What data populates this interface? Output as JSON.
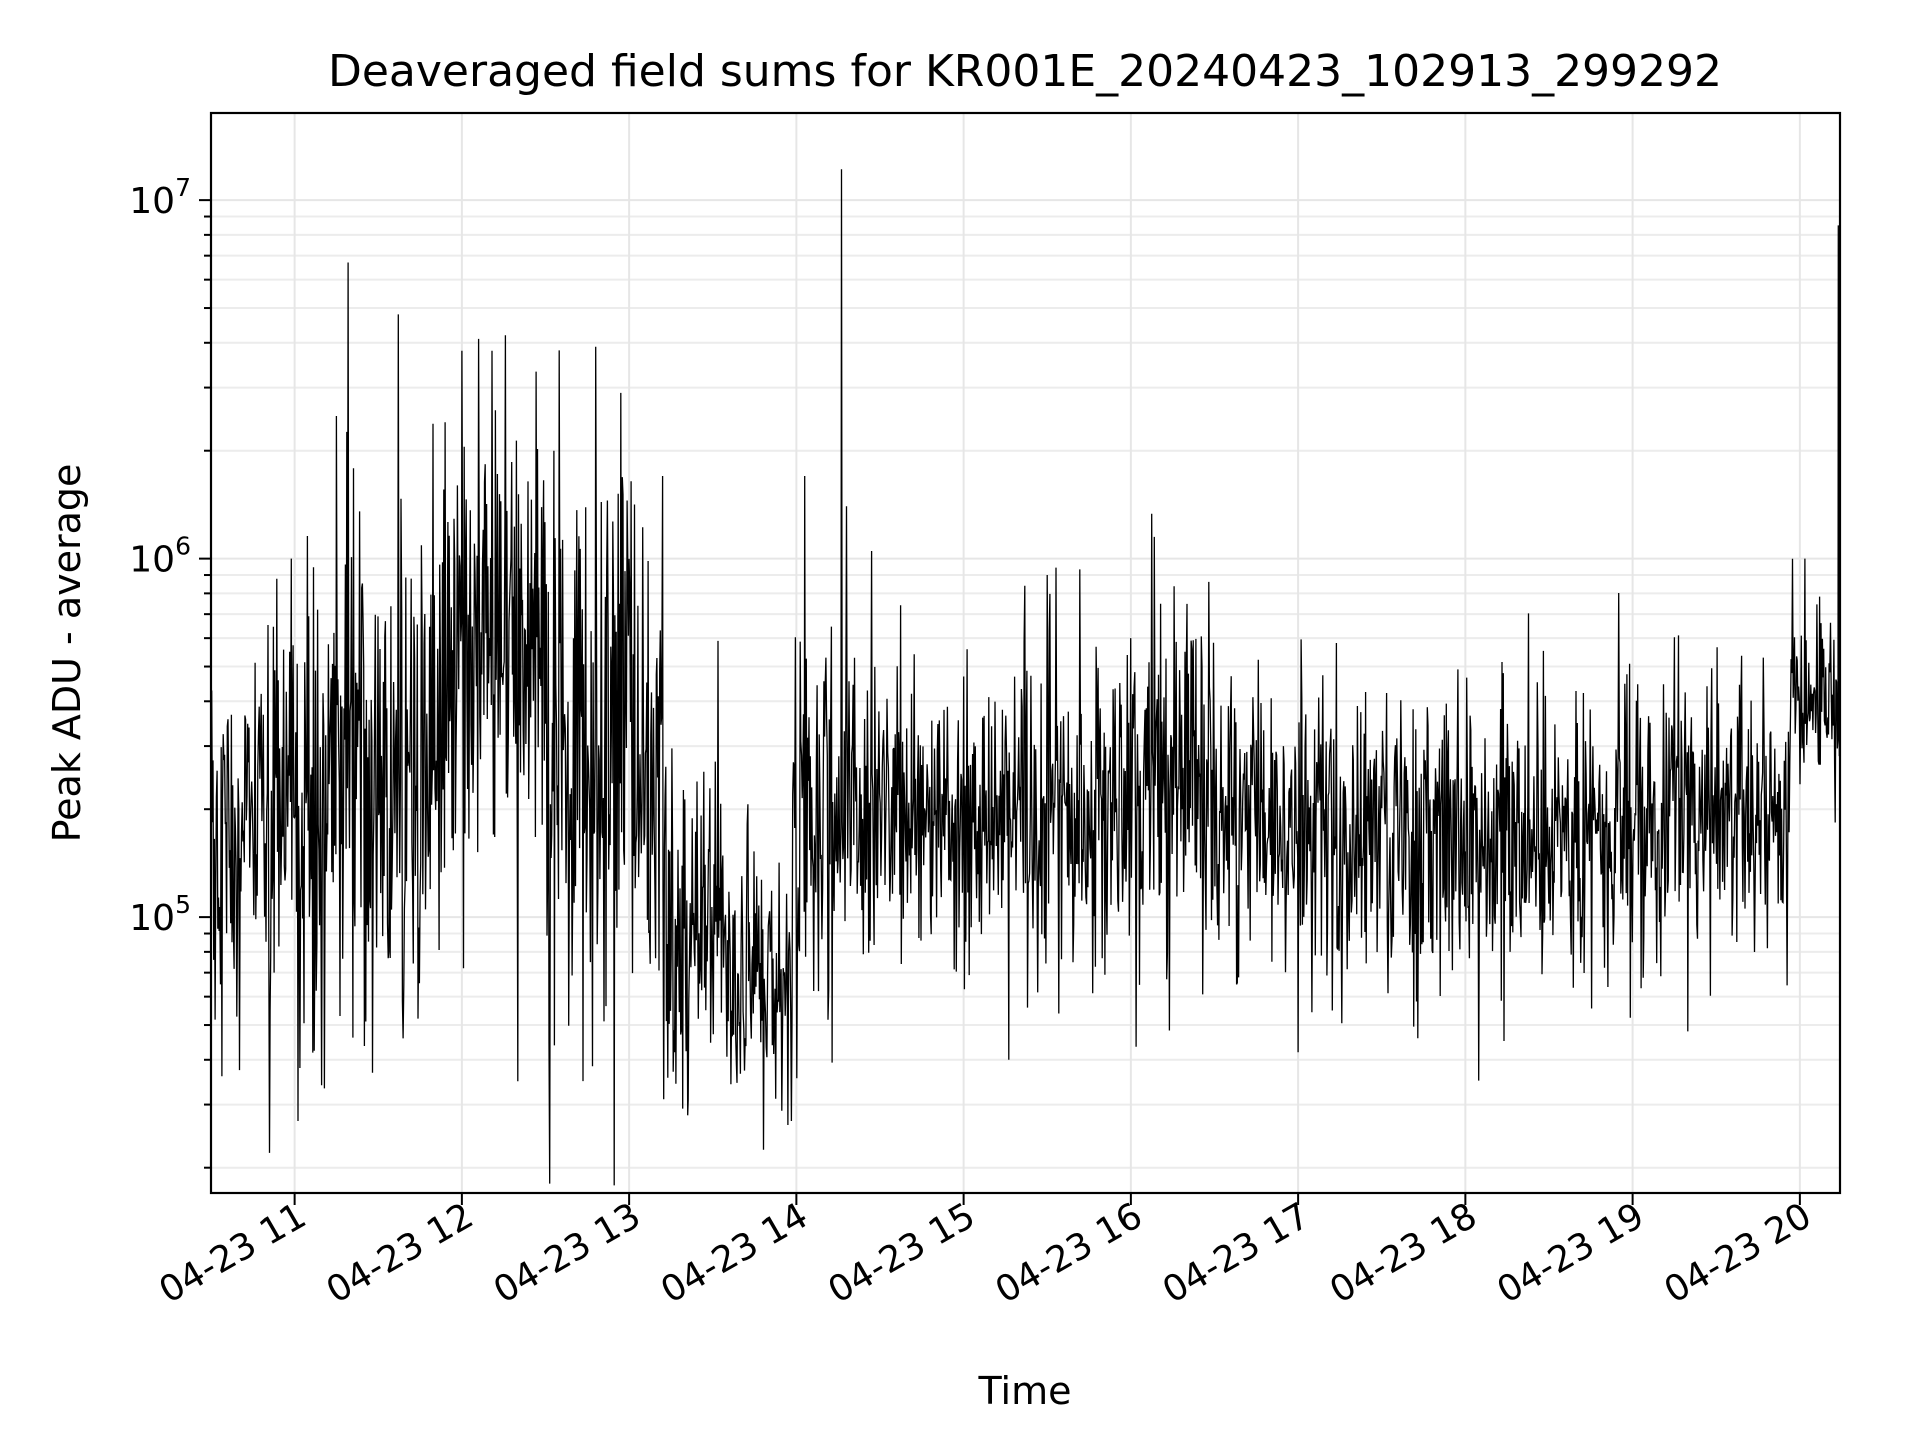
{
  "chart_data": {
    "type": "line",
    "title": "Deaveraged field sums for KR001E_20240423_102913_299292",
    "xlabel": "Time",
    "ylabel": "Peak ADU - average",
    "yscale": "log",
    "grid": true,
    "grid_minor_y": true,
    "line_color": "#000000",
    "x_start": "2024-04-23 10:30",
    "x_end": "2024-04-23 20:14",
    "xlim_hours": [
      10.5,
      20.24
    ],
    "ylim": [
      17000,
      17500000
    ],
    "x_tick_values": [
      11,
      12,
      13,
      14,
      15,
      16,
      17,
      18,
      19,
      20
    ],
    "x_tick_labels": [
      "04-23 11",
      "04-23 12",
      "04-23 13",
      "04-23 14",
      "04-23 15",
      "04-23 16",
      "04-23 17",
      "04-23 18",
      "04-23 19",
      "04-23 20"
    ],
    "y_ticks": [
      {
        "value": 100000,
        "base": "10",
        "exp": "5"
      },
      {
        "value": 1000000,
        "base": "10",
        "exp": "6"
      },
      {
        "value": 10000000,
        "base": "10",
        "exp": "7"
      }
    ],
    "segments": [
      {
        "from": 10.5,
        "to": 10.9,
        "median": 160000,
        "spread": 0.3
      },
      {
        "from": 10.9,
        "to": 11.2,
        "median": 170000,
        "spread": 0.38
      },
      {
        "from": 11.2,
        "to": 11.9,
        "median": 260000,
        "spread": 0.36
      },
      {
        "from": 11.9,
        "to": 12.5,
        "median": 550000,
        "spread": 0.3
      },
      {
        "from": 12.5,
        "to": 13.2,
        "median": 250000,
        "spread": 0.38
      },
      {
        "from": 13.2,
        "to": 13.6,
        "median": 95000,
        "spread": 0.24
      },
      {
        "from": 13.6,
        "to": 13.97,
        "median": 65000,
        "spread": 0.18
      },
      {
        "from": 13.97,
        "to": 14.25,
        "median": 200000,
        "spread": 0.3
      },
      {
        "from": 14.25,
        "to": 16.05,
        "median": 190000,
        "spread": 0.22
      },
      {
        "from": 16.05,
        "to": 16.5,
        "median": 240000,
        "spread": 0.24
      },
      {
        "from": 16.5,
        "to": 19.2,
        "median": 180000,
        "spread": 0.21
      },
      {
        "from": 19.2,
        "to": 19.95,
        "median": 200000,
        "spread": 0.2
      },
      {
        "from": 19.95,
        "to": 20.24,
        "median": 400000,
        "spread": 0.14
      }
    ],
    "spikes": [
      {
        "t": 11.32,
        "value": 6700000
      },
      {
        "t": 11.25,
        "value": 2500000
      },
      {
        "t": 11.62,
        "value": 4800000
      },
      {
        "t": 11.9,
        "value": 2400000
      },
      {
        "t": 12.0,
        "value": 3800000
      },
      {
        "t": 12.1,
        "value": 4100000
      },
      {
        "t": 12.18,
        "value": 3800000
      },
      {
        "t": 12.26,
        "value": 4200000
      },
      {
        "t": 12.55,
        "value": 2000000
      },
      {
        "t": 12.8,
        "value": 3900000
      },
      {
        "t": 12.95,
        "value": 2900000
      },
      {
        "t": 13.2,
        "value": 1700000
      },
      {
        "t": 10.98,
        "value": 1000000
      },
      {
        "t": 14.05,
        "value": 1700000
      },
      {
        "t": 14.27,
        "value": 12200000
      },
      {
        "t": 14.3,
        "value": 1400000
      },
      {
        "t": 14.45,
        "value": 1050000
      },
      {
        "t": 15.5,
        "value": 900000
      },
      {
        "t": 16.14,
        "value": 1150000
      },
      {
        "t": 20.03,
        "value": 1000000
      },
      {
        "t": 20.23,
        "value": 8500000
      },
      {
        "t": 10.85,
        "value": 22000
      },
      {
        "t": 11.02,
        "value": 27000
      },
      {
        "t": 13.35,
        "value": 28000
      },
      {
        "t": 13.97,
        "value": 27000
      },
      {
        "t": 18.08,
        "value": 35000
      },
      {
        "t": 15.27,
        "value": 40000
      },
      {
        "t": 17.0,
        "value": 42000
      },
      {
        "t": 19.33,
        "value": 48000
      }
    ]
  }
}
